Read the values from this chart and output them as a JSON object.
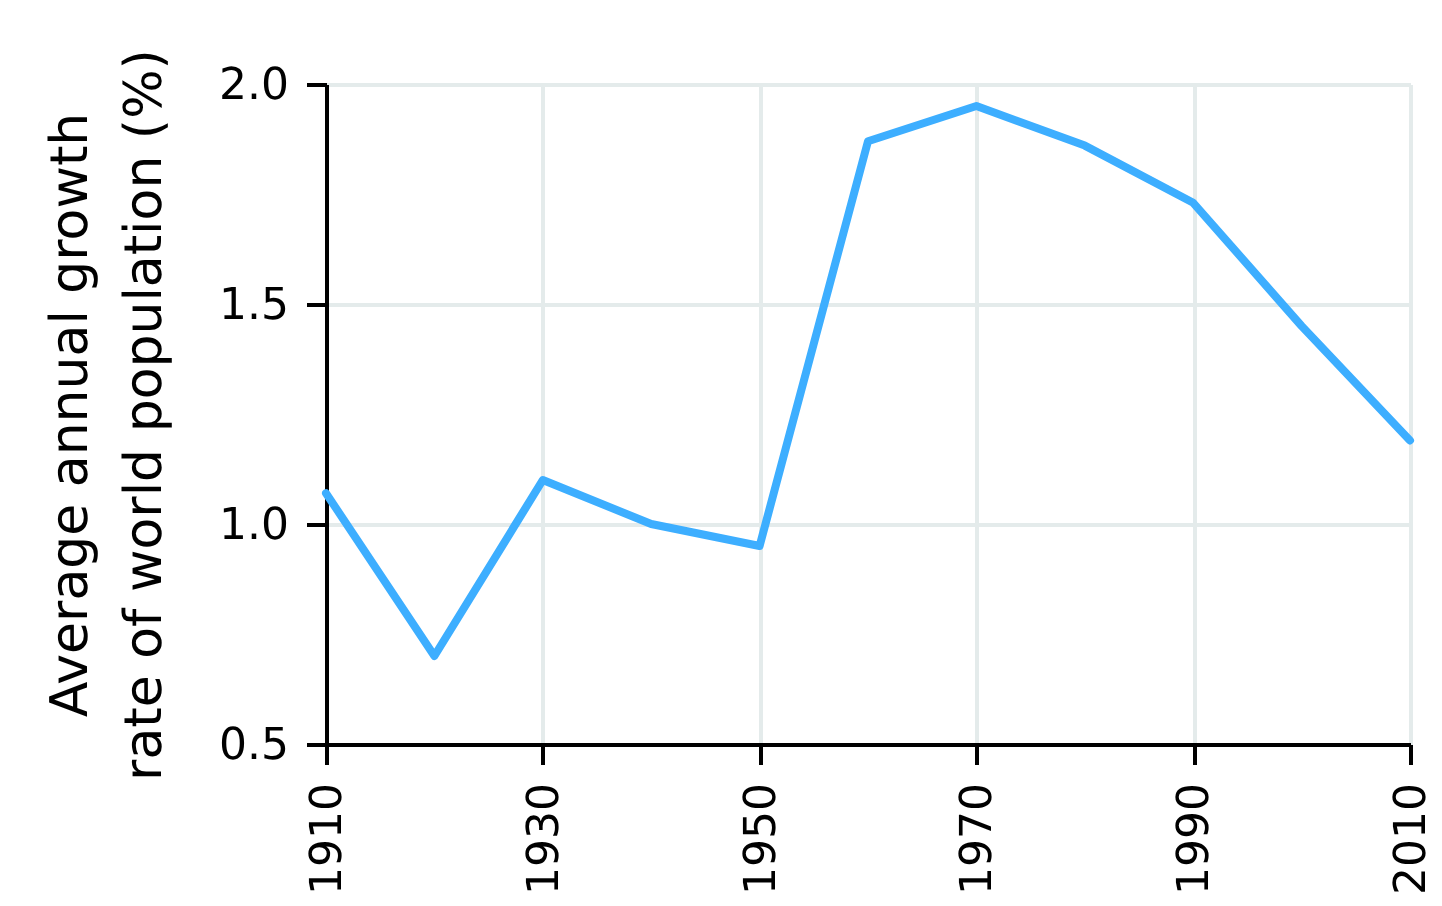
{
  "chart_data": {
    "type": "line",
    "ylabel": "Average annual growth rate of world population (%)",
    "x": [
      1910,
      1920,
      1930,
      1940,
      1950,
      1960,
      1970,
      1980,
      1990,
      2000,
      2010
    ],
    "series": [
      {
        "color": "#3daeff",
        "values": [
          1.07,
          0.7,
          1.1,
          1.0,
          0.95,
          1.87,
          1.95,
          1.86,
          1.73,
          1.45,
          1.19
        ]
      }
    ],
    "xlim": [
      1910,
      2010
    ],
    "xticks": [
      1910,
      1930,
      1950,
      1970,
      1990,
      2010
    ],
    "ylim": [
      0.5,
      2.0
    ],
    "yticks": [
      {
        "value": 0.5,
        "label": "0.5"
      },
      {
        "value": 1.0,
        "label": "1.0"
      },
      {
        "value": 1.5,
        "label": "1.5"
      },
      {
        "value": 2.0,
        "label": "2.0"
      }
    ],
    "grid": true
  }
}
